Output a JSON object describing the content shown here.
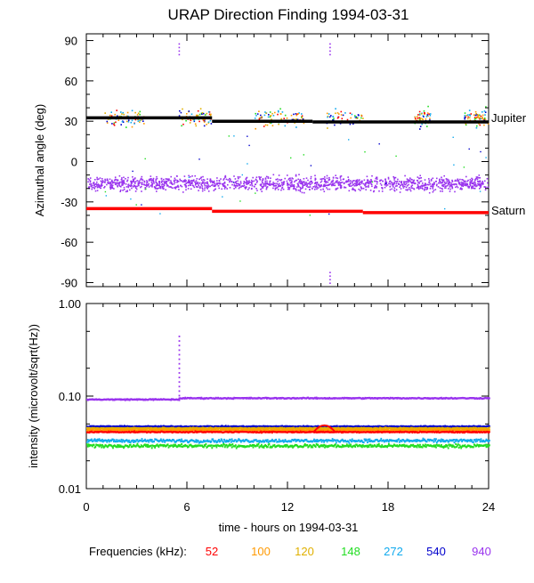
{
  "title": "URAP Direction Finding  1994-03-31",
  "colors": {
    "axis": "#000000",
    "52": "#ff0000",
    "100": "#ff9900",
    "120": "#e0b000",
    "148": "#22dd22",
    "272": "#11aaee",
    "540": "#0000cc",
    "940": "#9933ee",
    "jupiter": "#000000",
    "saturn": "#ff0000"
  },
  "xaxis": {
    "label": "time - hours on 1994-03-31",
    "range": [
      0,
      24
    ],
    "ticks": [
      0,
      6,
      12,
      18,
      24
    ],
    "tick_labels": [
      "0",
      "6",
      "12",
      "18",
      "24"
    ]
  },
  "legend": {
    "prefix": "Frequencies (kHz):",
    "entries": [
      {
        "label": "52",
        "key": "52"
      },
      {
        "label": "100",
        "key": "100"
      },
      {
        "label": "120",
        "key": "120"
      },
      {
        "label": "148",
        "key": "148"
      },
      {
        "label": "272",
        "key": "272"
      },
      {
        "label": "540",
        "key": "540"
      },
      {
        "label": "940",
        "key": "940"
      }
    ]
  },
  "chart_data": [
    {
      "type": "scatter",
      "title": "URAP Direction Finding  1994-03-31",
      "ylabel": "Azimuthal angle (deg)",
      "xlabel": "time - hours on 1994-03-31",
      "xlim": [
        0,
        24
      ],
      "ylim": [
        -93,
        95
      ],
      "yticks": [
        90,
        60,
        30,
        0,
        -30,
        -60,
        -90
      ],
      "ytick_labels": [
        "90",
        "60",
        "30",
        "0",
        "-30",
        "-60",
        "-90"
      ],
      "reference_lines": [
        {
          "name": "Jupiter",
          "label": "Jupiter",
          "color_key": "jupiter",
          "segments": [
            {
              "x": [
                0,
                7.5
              ],
              "y": 32.5
            },
            {
              "x": [
                7.5,
                13.5
              ],
              "y": 30
            },
            {
              "x": [
                13.5,
                24
              ],
              "y": 29.5
            }
          ]
        },
        {
          "name": "Saturn",
          "label": "Saturn",
          "color_key": "saturn",
          "segments": [
            {
              "x": [
                0,
                7.5
              ],
              "y": -35
            },
            {
              "x": [
                7.5,
                16.5
              ],
              "y": -37
            },
            {
              "x": [
                16.5,
                24
              ],
              "y": -38
            }
          ]
        }
      ],
      "series": [
        {
          "name": "940 kHz cluster",
          "freq": "940",
          "x_range": [
            0,
            24
          ],
          "center": -16,
          "spread": 6,
          "density": "dense"
        },
        {
          "name": "mixed scatter near Jupiter",
          "freq": "mixed",
          "x_range": [
            0,
            24
          ],
          "center": 32,
          "spread": 6,
          "density": "sparse"
        }
      ],
      "annotations": [
        {
          "x": 5.5,
          "y": 88,
          "freq": "940"
        },
        {
          "x": 14.5,
          "y": 88,
          "freq": "940"
        },
        {
          "x": 14.5,
          "y": -82,
          "freq": "940"
        }
      ]
    },
    {
      "type": "line",
      "ylabel": "intensity (microvolt/sqrt(Hz))",
      "xlabel": "time - hours on 1994-03-31",
      "xlim": [
        0,
        24
      ],
      "yscale": "log",
      "ylim": [
        0.01,
        1.0
      ],
      "yticks": [
        1.0,
        0.1,
        0.01
      ],
      "ytick_labels": [
        "1.00",
        "0.10",
        "0.01"
      ],
      "series": [
        {
          "name": "940",
          "freq": "940",
          "levels": [
            {
              "x": [
                0,
                5.5
              ],
              "y": 0.092
            },
            {
              "x": [
                5.5,
                24
              ],
              "y": 0.095
            }
          ],
          "spike": {
            "x": 5.5,
            "y": 0.45
          }
        },
        {
          "name": "540",
          "freq": "540",
          "levels": [
            {
              "x": [
                0,
                24
              ],
              "y": 0.047
            }
          ]
        },
        {
          "name": "120",
          "freq": "120",
          "levels": [
            {
              "x": [
                0,
                24
              ],
              "y": 0.045
            }
          ]
        },
        {
          "name": "100",
          "freq": "100",
          "levels": [
            {
              "x": [
                0,
                24
              ],
              "y": 0.043
            }
          ]
        },
        {
          "name": "52",
          "freq": "52",
          "levels": [
            {
              "x": [
                0,
                24
              ],
              "y": 0.041
            }
          ],
          "bump": {
            "x": 14.2,
            "y": 0.052
          }
        },
        {
          "name": "272",
          "freq": "272",
          "levels": [
            {
              "x": [
                0,
                24
              ],
              "y": 0.033
            }
          ]
        },
        {
          "name": "148",
          "freq": "148",
          "levels": [
            {
              "x": [
                0,
                24
              ],
              "y": 0.029
            }
          ]
        }
      ]
    }
  ]
}
